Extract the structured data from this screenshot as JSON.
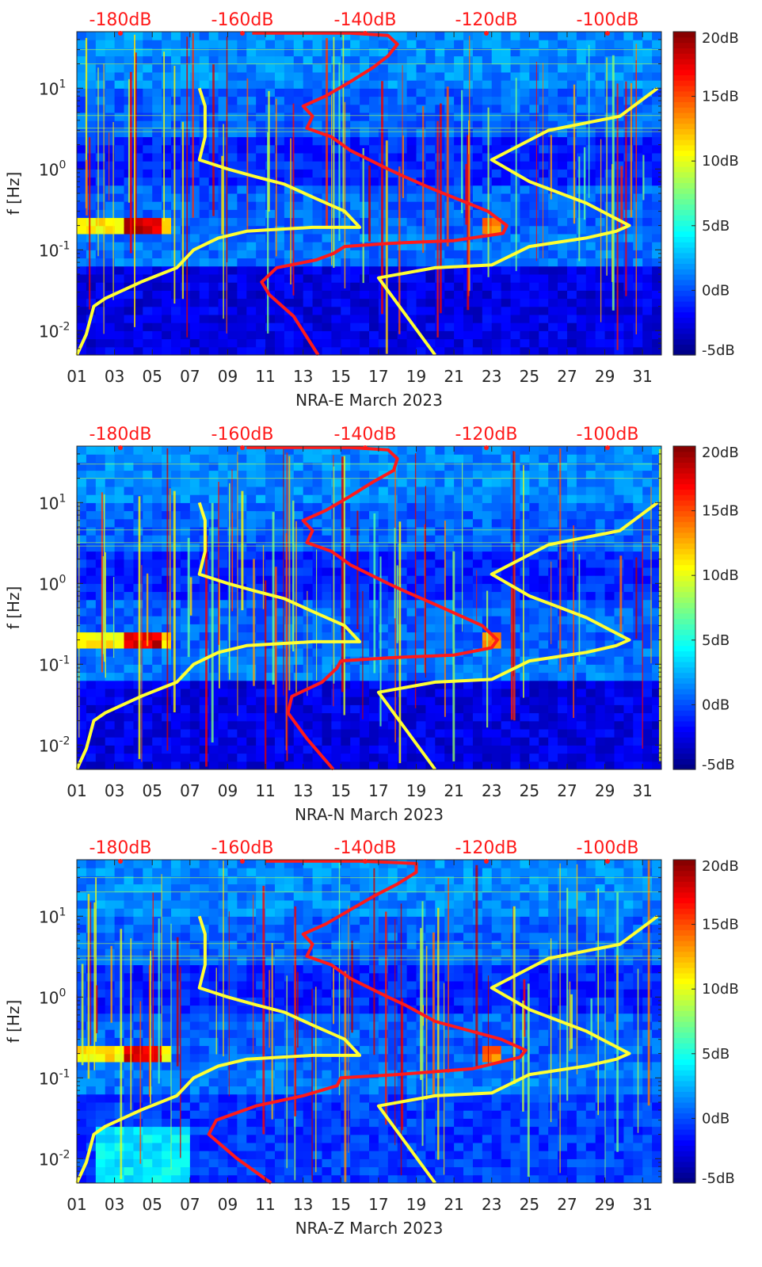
{
  "chart_data": [
    {
      "type": "heatmap",
      "title": "",
      "xlabel": "NRA-E March 2023",
      "ylabel": "f [Hz]",
      "xlim": [
        1,
        32
      ],
      "ylim": [
        0.005,
        50
      ],
      "yscale": "log",
      "x_ticks": [
        "01",
        "03",
        "05",
        "07",
        "09",
        "11",
        "13",
        "15",
        "17",
        "19",
        "21",
        "23",
        "25",
        "27",
        "29",
        "31"
      ],
      "y_ticks": [
        {
          "label": "10^-2",
          "exp": "-2",
          "value": 0.01
        },
        {
          "label": "10^-1",
          "exp": "-1",
          "value": 0.1
        },
        {
          "label": "10^0",
          "exp": "0",
          "value": 1
        },
        {
          "label": "10^1",
          "exp": "1",
          "value": 10
        }
      ],
      "top_axis_labels": [
        "-180dB",
        "-160dB",
        "-140dB",
        "-120dB",
        "-100dB"
      ],
      "colorbar": {
        "ticks": [
          "20dB",
          "15dB",
          "10dB",
          "5dB",
          "0dB",
          "-5dB"
        ],
        "range": [
          -5,
          20
        ],
        "colormap": "jet"
      },
      "series": [
        {
          "name": "yellow-noise-model-low",
          "color": "#ffff33",
          "points": [
            [
              1.0,
              0.005
            ],
            [
              1.5,
              0.009
            ],
            [
              1.9,
              0.02
            ],
            [
              2.5,
              0.025
            ],
            [
              4.4,
              0.04
            ],
            [
              6.3,
              0.06
            ],
            [
              7.2,
              0.1
            ],
            [
              8.5,
              0.14
            ],
            [
              10.0,
              0.17
            ],
            [
              13.5,
              0.19
            ],
            [
              16.0,
              0.19
            ],
            [
              15.2,
              0.3
            ],
            [
              13.5,
              0.45
            ],
            [
              12.0,
              0.65
            ],
            [
              10.5,
              0.8
            ],
            [
              9.0,
              1.0
            ],
            [
              7.5,
              1.3
            ],
            [
              7.8,
              2.5
            ],
            [
              7.8,
              6.0
            ],
            [
              7.5,
              10.0
            ]
          ]
        },
        {
          "name": "yellow-noise-model-high",
          "color": "#ffff33",
          "points": [
            [
              20.0,
              0.005
            ],
            [
              17.0,
              0.045
            ],
            [
              20.0,
              0.06
            ],
            [
              23.0,
              0.065
            ],
            [
              25.0,
              0.11
            ],
            [
              28.0,
              0.14
            ],
            [
              29.6,
              0.17
            ],
            [
              30.3,
              0.2
            ],
            [
              28.0,
              0.38
            ],
            [
              25.0,
              0.7
            ],
            [
              23.0,
              1.3
            ],
            [
              26.0,
              3.0
            ],
            [
              29.8,
              4.5
            ],
            [
              31.8,
              10.0
            ]
          ]
        },
        {
          "name": "red-psd-median",
          "color": "#ff1a1a",
          "points": [
            [
              13.8,
              0.005
            ],
            [
              12.5,
              0.015
            ],
            [
              11.2,
              0.028
            ],
            [
              10.8,
              0.04
            ],
            [
              11.6,
              0.06
            ],
            [
              13.7,
              0.075
            ],
            [
              14.6,
              0.09
            ],
            [
              15.2,
              0.11
            ],
            [
              17.5,
              0.12
            ],
            [
              21.0,
              0.13
            ],
            [
              23.6,
              0.16
            ],
            [
              23.8,
              0.2
            ],
            [
              22.8,
              0.3
            ],
            [
              20.0,
              0.55
            ],
            [
              18.4,
              0.8
            ],
            [
              17.5,
              1.0
            ],
            [
              15.5,
              1.7
            ],
            [
              14.5,
              2.5
            ],
            [
              13.2,
              3.2
            ],
            [
              13.5,
              4.5
            ],
            [
              13.0,
              6.0
            ],
            [
              14.2,
              8.0
            ],
            [
              15.5,
              12.0
            ],
            [
              16.7,
              18.0
            ],
            [
              17.5,
              25.0
            ],
            [
              18.0,
              35.0
            ],
            [
              17.5,
              45.0
            ],
            [
              15.5,
              48.0
            ],
            [
              10.3,
              48.0
            ]
          ]
        }
      ]
    },
    {
      "type": "heatmap",
      "title": "",
      "xlabel": "NRA-N March 2023",
      "ylabel": "f [Hz]",
      "xlim": [
        1,
        32
      ],
      "ylim": [
        0.005,
        50
      ],
      "yscale": "log",
      "x_ticks": [
        "01",
        "03",
        "05",
        "07",
        "09",
        "11",
        "13",
        "15",
        "17",
        "19",
        "21",
        "23",
        "25",
        "27",
        "29",
        "31"
      ],
      "y_ticks": [
        {
          "label": "10^-2",
          "exp": "-2",
          "value": 0.01
        },
        {
          "label": "10^-1",
          "exp": "-1",
          "value": 0.1
        },
        {
          "label": "10^0",
          "exp": "0",
          "value": 1
        },
        {
          "label": "10^1",
          "exp": "1",
          "value": 10
        }
      ],
      "top_axis_labels": [
        "-180dB",
        "-160dB",
        "-140dB",
        "-120dB",
        "-100dB"
      ],
      "colorbar": {
        "ticks": [
          "20dB",
          "15dB",
          "10dB",
          "5dB",
          "0dB",
          "-5dB"
        ],
        "range": [
          -5,
          20
        ],
        "colormap": "jet"
      },
      "series": [
        {
          "name": "yellow-noise-model-low",
          "color": "#ffff33",
          "points": [
            [
              1.0,
              0.005
            ],
            [
              1.5,
              0.009
            ],
            [
              1.9,
              0.02
            ],
            [
              2.5,
              0.025
            ],
            [
              4.4,
              0.04
            ],
            [
              6.3,
              0.06
            ],
            [
              7.2,
              0.1
            ],
            [
              8.5,
              0.14
            ],
            [
              10.0,
              0.17
            ],
            [
              13.5,
              0.19
            ],
            [
              16.0,
              0.19
            ],
            [
              15.2,
              0.3
            ],
            [
              13.5,
              0.45
            ],
            [
              12.0,
              0.65
            ],
            [
              10.5,
              0.8
            ],
            [
              9.0,
              1.0
            ],
            [
              7.5,
              1.3
            ],
            [
              7.8,
              2.5
            ],
            [
              7.8,
              6.0
            ],
            [
              7.5,
              10.0
            ]
          ]
        },
        {
          "name": "yellow-noise-model-high",
          "color": "#ffff33",
          "points": [
            [
              20.0,
              0.005
            ],
            [
              17.0,
              0.045
            ],
            [
              20.0,
              0.06
            ],
            [
              23.0,
              0.065
            ],
            [
              25.0,
              0.11
            ],
            [
              28.0,
              0.14
            ],
            [
              29.6,
              0.17
            ],
            [
              30.3,
              0.2
            ],
            [
              28.0,
              0.38
            ],
            [
              25.0,
              0.7
            ],
            [
              23.0,
              1.3
            ],
            [
              26.0,
              3.0
            ],
            [
              29.8,
              4.5
            ],
            [
              31.8,
              10.0
            ]
          ]
        },
        {
          "name": "red-psd-median",
          "color": "#ff1a1a",
          "points": [
            [
              14.6,
              0.005
            ],
            [
              13.2,
              0.012
            ],
            [
              12.2,
              0.025
            ],
            [
              12.4,
              0.04
            ],
            [
              14.0,
              0.06
            ],
            [
              14.8,
              0.09
            ],
            [
              15.0,
              0.11
            ],
            [
              17.5,
              0.12
            ],
            [
              21.0,
              0.13
            ],
            [
              23.0,
              0.16
            ],
            [
              23.3,
              0.2
            ],
            [
              22.5,
              0.3
            ],
            [
              20.0,
              0.55
            ],
            [
              18.4,
              0.8
            ],
            [
              17.5,
              1.0
            ],
            [
              15.5,
              1.7
            ],
            [
              14.5,
              2.5
            ],
            [
              13.2,
              3.2
            ],
            [
              13.5,
              4.5
            ],
            [
              13.0,
              6.0
            ],
            [
              14.2,
              8.0
            ],
            [
              15.5,
              12.0
            ],
            [
              16.7,
              18.0
            ],
            [
              17.8,
              25.0
            ],
            [
              18.0,
              35.0
            ],
            [
              17.5,
              45.0
            ],
            [
              15.5,
              48.0
            ],
            [
              10.0,
              48.0
            ]
          ]
        }
      ]
    },
    {
      "type": "heatmap",
      "title": "",
      "xlabel": "NRA-Z March 2023",
      "ylabel": "f [Hz]",
      "xlim": [
        1,
        32
      ],
      "ylim": [
        0.005,
        50
      ],
      "yscale": "log",
      "x_ticks": [
        "01",
        "03",
        "05",
        "07",
        "09",
        "11",
        "13",
        "15",
        "17",
        "19",
        "21",
        "23",
        "25",
        "27",
        "29",
        "31"
      ],
      "y_ticks": [
        {
          "label": "10^-2",
          "exp": "-2",
          "value": 0.01
        },
        {
          "label": "10^-1",
          "exp": "-1",
          "value": 0.1
        },
        {
          "label": "10^0",
          "exp": "0",
          "value": 1
        },
        {
          "label": "10^1",
          "exp": "1",
          "value": 10
        }
      ],
      "top_axis_labels": [
        "-180dB",
        "-160dB",
        "-140dB",
        "-120dB",
        "-100dB"
      ],
      "colorbar": {
        "ticks": [
          "20dB",
          "15dB",
          "10dB",
          "5dB",
          "0dB",
          "-5dB"
        ],
        "range": [
          -5,
          20
        ],
        "colormap": "jet"
      },
      "series": [
        {
          "name": "yellow-noise-model-low",
          "color": "#ffff33",
          "points": [
            [
              1.0,
              0.005
            ],
            [
              1.5,
              0.009
            ],
            [
              1.9,
              0.02
            ],
            [
              2.5,
              0.025
            ],
            [
              4.4,
              0.04
            ],
            [
              6.3,
              0.06
            ],
            [
              7.2,
              0.1
            ],
            [
              8.5,
              0.14
            ],
            [
              10.0,
              0.17
            ],
            [
              13.5,
              0.19
            ],
            [
              16.0,
              0.19
            ],
            [
              15.2,
              0.3
            ],
            [
              13.5,
              0.45
            ],
            [
              12.0,
              0.65
            ],
            [
              10.5,
              0.8
            ],
            [
              9.0,
              1.0
            ],
            [
              7.5,
              1.3
            ],
            [
              7.8,
              2.5
            ],
            [
              7.8,
              6.0
            ],
            [
              7.5,
              10.0
            ]
          ]
        },
        {
          "name": "yellow-noise-model-high",
          "color": "#ffff33",
          "points": [
            [
              20.0,
              0.005
            ],
            [
              17.0,
              0.045
            ],
            [
              20.0,
              0.06
            ],
            [
              23.0,
              0.065
            ],
            [
              25.0,
              0.11
            ],
            [
              28.0,
              0.14
            ],
            [
              29.6,
              0.17
            ],
            [
              30.3,
              0.2
            ],
            [
              28.0,
              0.38
            ],
            [
              25.0,
              0.7
            ],
            [
              23.0,
              1.3
            ],
            [
              26.0,
              3.0
            ],
            [
              29.8,
              4.5
            ],
            [
              31.8,
              10.0
            ]
          ]
        },
        {
          "name": "red-psd-median",
          "color": "#ff1a1a",
          "points": [
            [
              11.3,
              0.005
            ],
            [
              9.5,
              0.01
            ],
            [
              8.0,
              0.02
            ],
            [
              8.4,
              0.03
            ],
            [
              10.5,
              0.045
            ],
            [
              13.0,
              0.06
            ],
            [
              14.8,
              0.08
            ],
            [
              15.0,
              0.1
            ],
            [
              18.0,
              0.11
            ],
            [
              22.0,
              0.13
            ],
            [
              24.5,
              0.18
            ],
            [
              24.8,
              0.22
            ],
            [
              23.5,
              0.3
            ],
            [
              20.0,
              0.5
            ],
            [
              18.4,
              0.8
            ],
            [
              17.5,
              1.0
            ],
            [
              15.5,
              1.7
            ],
            [
              14.5,
              2.5
            ],
            [
              13.2,
              3.2
            ],
            [
              13.5,
              4.5
            ],
            [
              13.0,
              6.0
            ],
            [
              14.2,
              8.0
            ],
            [
              15.5,
              12.0
            ],
            [
              16.8,
              18.0
            ],
            [
              18.0,
              25.0
            ],
            [
              19.0,
              35.0
            ],
            [
              19.0,
              45.0
            ],
            [
              16.0,
              48.0
            ],
            [
              11.0,
              48.0
            ]
          ]
        }
      ]
    }
  ]
}
